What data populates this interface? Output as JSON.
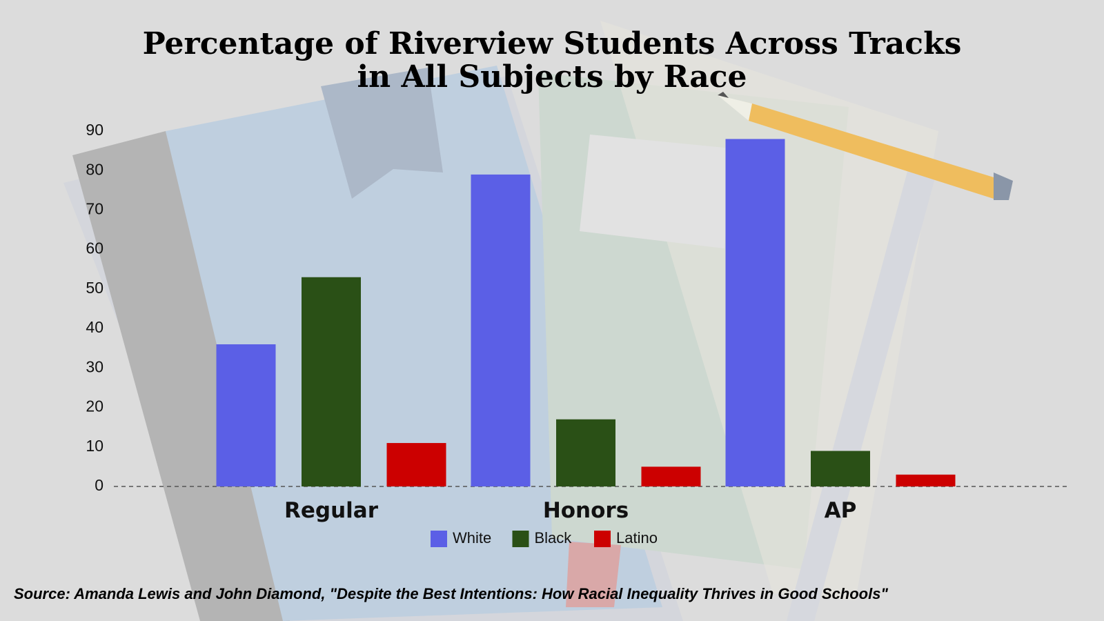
{
  "chart_data": {
    "type": "bar",
    "title": [
      "Percentage of Riverview Students Across Tracks",
      "in All Subjects by Race"
    ],
    "categories": [
      "Regular",
      "Honors",
      "AP"
    ],
    "series": [
      {
        "name": "White",
        "color": "#5b5fe6",
        "values": [
          36,
          79,
          88
        ]
      },
      {
        "name": "Black",
        "color": "#2a5016",
        "values": [
          53,
          17,
          9
        ]
      },
      {
        "name": "Latino",
        "color": "#cc0000",
        "values": [
          11,
          5,
          3
        ]
      }
    ],
    "ylim": [
      0,
      90
    ],
    "yticks": [
      0,
      10,
      20,
      30,
      40,
      50,
      60,
      70,
      80,
      90
    ],
    "legend": "bottom",
    "source": "Source: Amanda Lewis and John Diamond, \"Despite the Best Intentions: How Racial Inequality Thrives in Good Schools\""
  }
}
